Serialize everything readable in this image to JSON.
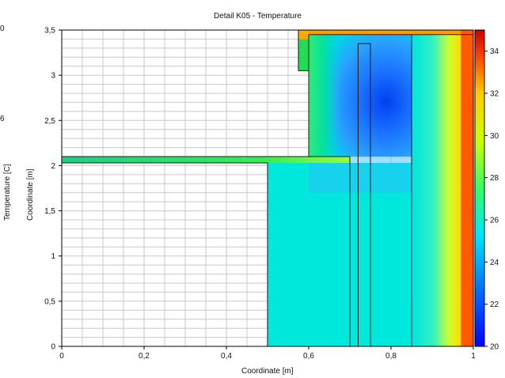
{
  "window": {
    "left_cropped_labels": [
      "0",
      "6"
    ]
  },
  "chart_data": {
    "type": "heatmap",
    "title": "Detail K05 - Temperature",
    "xlabel": "Coordinate [m]",
    "ylabel": "Coordinate [m]",
    "xlim": [
      0,
      1
    ],
    "ylim": [
      0,
      3.5
    ],
    "x_ticks": [
      {
        "value": 0,
        "label": "0"
      },
      {
        "value": 0.2,
        "label": "0,2"
      },
      {
        "value": 0.4,
        "label": "0,4"
      },
      {
        "value": 0.6,
        "label": "0,6"
      },
      {
        "value": 0.8,
        "label": "0,8"
      },
      {
        "value": 1,
        "label": "1"
      }
    ],
    "y_ticks": [
      {
        "value": 0,
        "label": "0"
      },
      {
        "value": 0.5,
        "label": "0,5"
      },
      {
        "value": 1,
        "label": "1"
      },
      {
        "value": 1.5,
        "label": "1,5"
      },
      {
        "value": 2,
        "label": "2"
      },
      {
        "value": 2.5,
        "label": "2,5"
      },
      {
        "value": 3,
        "label": "3"
      },
      {
        "value": 3.5,
        "label": "3,5"
      }
    ],
    "colorbar": {
      "label": "Temperature [C]",
      "range": [
        20,
        35
      ],
      "ticks": [
        {
          "value": 20,
          "label": "20"
        },
        {
          "value": 22,
          "label": "22"
        },
        {
          "value": 24,
          "label": "24"
        },
        {
          "value": 26,
          "label": "26"
        },
        {
          "value": 28,
          "label": "28"
        },
        {
          "value": 30,
          "label": "30"
        },
        {
          "value": 32,
          "label": "32"
        },
        {
          "value": 34,
          "label": "34"
        }
      ],
      "colormap": "jet"
    },
    "grid": true,
    "regions": [
      {
        "name": "lower-block",
        "x0": 0.5,
        "x1": 0.7,
        "y0": 0,
        "y1": 2.03,
        "temperature": 27
      },
      {
        "name": "lower-insulation-column",
        "x0": 0.7,
        "x1": 0.85,
        "y0": 0,
        "y1": 2.1,
        "temperature": 27.5
      },
      {
        "name": "inner-column",
        "x0": 0.72,
        "x1": 0.75,
        "y0": 0,
        "y1": 3.35,
        "temperature": 26
      },
      {
        "name": "upper-cold-core",
        "x0": 0.6,
        "x1": 0.85,
        "y0": 2.1,
        "y1": 3.45,
        "temperature": 21.5
      },
      {
        "name": "outer-gradient-band",
        "x0": 0.85,
        "x1": 1.0,
        "y0": 0,
        "y1": 3.45,
        "temperature": 30
      },
      {
        "name": "slab-strip",
        "x0": 0,
        "x1": 0.7,
        "y0": 2.03,
        "y1": 2.1,
        "temperature": 31
      }
    ]
  }
}
